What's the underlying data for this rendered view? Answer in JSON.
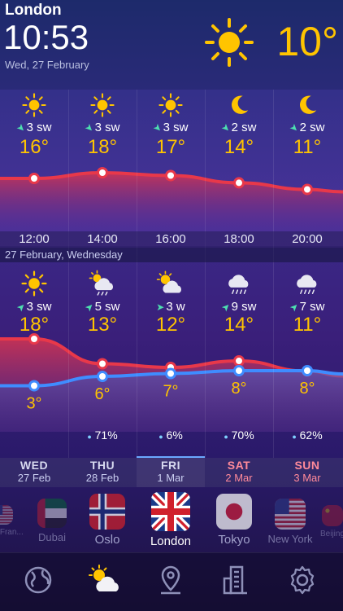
{
  "header": {
    "city": "London",
    "time": "10:53",
    "date": "Wed, 27 February",
    "current_temp": "10°",
    "current_icon": "sun-icon"
  },
  "hourly": [
    {
      "icon": "sun-icon",
      "wind": "3 sw",
      "temp": "16°",
      "time": "12:00",
      "temp_value": 16
    },
    {
      "icon": "sun-icon",
      "wind": "3 sw",
      "temp": "18°",
      "time": "14:00",
      "temp_value": 18
    },
    {
      "icon": "sun-icon",
      "wind": "3 sw",
      "temp": "17°",
      "time": "16:00",
      "temp_value": 17
    },
    {
      "icon": "moon-icon",
      "wind": "2 sw",
      "temp": "14°",
      "time": "18:00",
      "temp_value": 14
    },
    {
      "icon": "moon-icon",
      "wind": "2 sw",
      "temp": "11°",
      "time": "20:00",
      "temp_value": 11
    }
  ],
  "date_band": "27 February, Wednesday",
  "daily": [
    {
      "day": "WED",
      "date": "27 Feb",
      "icon": "sun-icon",
      "wind": "3 sw",
      "high": "18°",
      "low": "3°",
      "precip": "",
      "high_value": 18,
      "low_value": 3,
      "precip_value": 0,
      "weekend": false
    },
    {
      "day": "THU",
      "date": "28 Feb",
      "icon": "partly-cloudy-rain-icon",
      "wind": "5 sw",
      "high": "13°",
      "low": "6°",
      "precip": "71%",
      "high_value": 13,
      "low_value": 6,
      "precip_value": 71,
      "weekend": false
    },
    {
      "day": "FRI",
      "date": "1 Mar",
      "icon": "partly-cloudy-icon",
      "wind": "3 w",
      "high": "12°",
      "low": "7°",
      "precip": "6%",
      "high_value": 12,
      "low_value": 7,
      "precip_value": 6,
      "weekend": false
    },
    {
      "day": "SAT",
      "date": "2 Mar",
      "icon": "rain-cloud-icon",
      "wind": "9 sw",
      "high": "14°",
      "low": "8°",
      "precip": "70%",
      "high_value": 14,
      "low_value": 8,
      "precip_value": 70,
      "weekend": true
    },
    {
      "day": "SUN",
      "date": "3 Mar",
      "icon": "rain-cloud-icon",
      "wind": "7 sw",
      "high": "11°",
      "low": "8°",
      "precip": "62%",
      "high_value": 11,
      "low_value": 8,
      "precip_value": 62,
      "weekend": true
    }
  ],
  "cities": [
    {
      "name": "San Fran...",
      "flag": "usa-flag-icon",
      "selected": false
    },
    {
      "name": "Dubai",
      "flag": "uae-flag-icon",
      "selected": false
    },
    {
      "name": "Oslo",
      "flag": "norway-flag-icon",
      "selected": false
    },
    {
      "name": "London",
      "flag": "uk-flag-icon",
      "selected": true
    },
    {
      "name": "Tokyo",
      "flag": "japan-flag-icon",
      "selected": false
    },
    {
      "name": "New York",
      "flag": "usa-flag-icon",
      "selected": false
    },
    {
      "name": "Beijing",
      "flag": "china-flag-icon",
      "selected": false
    }
  ],
  "tabs": [
    {
      "name": "globe-icon",
      "active": false
    },
    {
      "name": "weather-icon",
      "active": true
    },
    {
      "name": "location-pin-icon",
      "active": false
    },
    {
      "name": "city-list-icon",
      "active": false
    },
    {
      "name": "settings-gear-icon",
      "active": false
    }
  ],
  "colors": {
    "accent_yellow": "#ffc400",
    "high_line": "#e8384a",
    "low_line": "#3f8cff",
    "wind_arrow": "#4de0b0",
    "weekend": "#ff8a9a"
  }
}
